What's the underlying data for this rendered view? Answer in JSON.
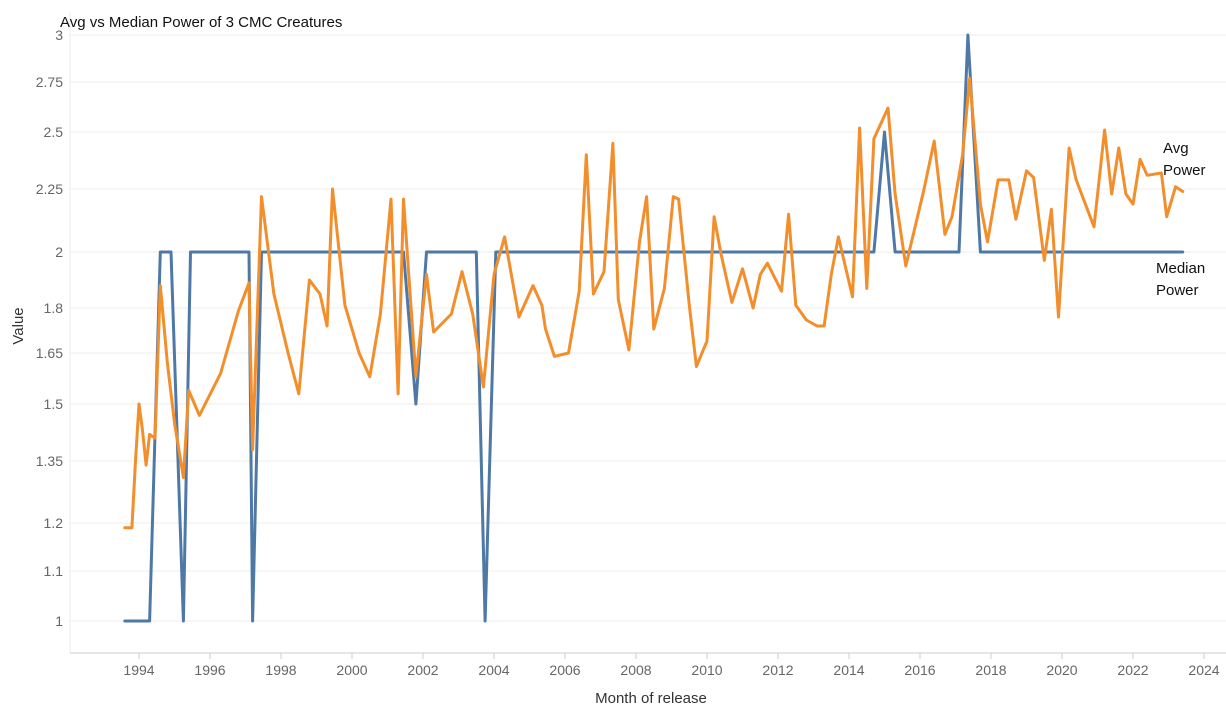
{
  "chart_data": {
    "type": "line",
    "title": "Avg vs Median Power of 3 CMC Creatures",
    "xlabel": "Month of release",
    "ylabel": "Value",
    "xlim": [
      1992.3,
      2024.7
    ],
    "ylim": [
      0.93,
      3.07
    ],
    "y_scale": "nonlinear (as displayed)",
    "grid": true,
    "legend": "inline labels at right end of each line",
    "x_ticks": [
      "1994",
      "1996",
      "1998",
      "2000",
      "2002",
      "2004",
      "2006",
      "2008",
      "2010",
      "2012",
      "2014",
      "2016",
      "2018",
      "2020",
      "2022",
      "2024"
    ],
    "y_ticks": [
      "1",
      "1.1",
      "1.2",
      "1.35",
      "1.5",
      "1.65",
      "1.8",
      "2",
      "2.25",
      "2.5",
      "2.75",
      "3"
    ],
    "series": [
      {
        "name": "Avg Power",
        "label_lines": [
          "Avg",
          "Power"
        ],
        "color": "#f28e2b",
        "points": [
          [
            1993.6,
            1.19
          ],
          [
            1993.8,
            1.19
          ],
          [
            1993.9,
            1.35
          ],
          [
            1994.0,
            1.5
          ],
          [
            1994.1,
            1.43
          ],
          [
            1994.2,
            1.34
          ],
          [
            1994.3,
            1.42
          ],
          [
            1994.45,
            1.41
          ],
          [
            1994.6,
            1.88
          ],
          [
            1994.8,
            1.62
          ],
          [
            1995.0,
            1.45
          ],
          [
            1995.25,
            1.31
          ],
          [
            1995.4,
            1.54
          ],
          [
            1995.7,
            1.47
          ],
          [
            1996.3,
            1.59
          ],
          [
            1996.8,
            1.79
          ],
          [
            1997.1,
            1.89
          ],
          [
            1997.2,
            1.38
          ],
          [
            1997.45,
            2.22
          ],
          [
            1997.8,
            1.85
          ],
          [
            1998.2,
            1.65
          ],
          [
            1998.5,
            1.53
          ],
          [
            1998.8,
            1.9
          ],
          [
            1999.1,
            1.85
          ],
          [
            1999.3,
            1.74
          ],
          [
            1999.45,
            2.25
          ],
          [
            1999.8,
            1.81
          ],
          [
            2000.2,
            1.65
          ],
          [
            2000.5,
            1.58
          ],
          [
            2000.8,
            1.78
          ],
          [
            2001.1,
            2.21
          ],
          [
            2001.3,
            1.53
          ],
          [
            2001.45,
            2.21
          ],
          [
            2001.8,
            1.58
          ],
          [
            2002.1,
            1.92
          ],
          [
            2002.3,
            1.72
          ],
          [
            2002.8,
            1.78
          ],
          [
            2003.1,
            1.93
          ],
          [
            2003.4,
            1.78
          ],
          [
            2003.7,
            1.55
          ],
          [
            2004.0,
            1.92
          ],
          [
            2004.3,
            2.06
          ],
          [
            2004.7,
            1.77
          ],
          [
            2005.1,
            1.88
          ],
          [
            2005.35,
            1.81
          ],
          [
            2005.45,
            1.73
          ],
          [
            2005.7,
            1.64
          ],
          [
            2006.1,
            1.65
          ],
          [
            2006.4,
            1.86
          ],
          [
            2006.6,
            2.4
          ],
          [
            2006.8,
            1.85
          ],
          [
            2007.1,
            1.93
          ],
          [
            2007.35,
            2.45
          ],
          [
            2007.5,
            1.83
          ],
          [
            2007.8,
            1.66
          ],
          [
            2008.1,
            2.04
          ],
          [
            2008.3,
            2.22
          ],
          [
            2008.5,
            1.73
          ],
          [
            2008.8,
            1.87
          ],
          [
            2009.05,
            2.22
          ],
          [
            2009.2,
            2.21
          ],
          [
            2009.5,
            1.81
          ],
          [
            2009.7,
            1.61
          ],
          [
            2010.0,
            1.69
          ],
          [
            2010.2,
            2.14
          ],
          [
            2010.4,
            1.99
          ],
          [
            2010.7,
            1.82
          ],
          [
            2011.0,
            1.94
          ],
          [
            2011.3,
            1.8
          ],
          [
            2011.5,
            1.92
          ],
          [
            2011.7,
            1.96
          ],
          [
            2012.1,
            1.86
          ],
          [
            2012.3,
            2.15
          ],
          [
            2012.5,
            1.81
          ],
          [
            2012.8,
            1.76
          ],
          [
            2013.1,
            1.74
          ],
          [
            2013.3,
            1.74
          ],
          [
            2013.5,
            1.92
          ],
          [
            2013.7,
            2.06
          ],
          [
            2014.1,
            1.84
          ],
          [
            2014.3,
            2.52
          ],
          [
            2014.5,
            1.87
          ],
          [
            2014.7,
            2.47
          ],
          [
            2015.1,
            2.62
          ],
          [
            2015.3,
            2.23
          ],
          [
            2015.6,
            1.95
          ],
          [
            2016.1,
            2.24
          ],
          [
            2016.4,
            2.46
          ],
          [
            2016.7,
            2.07
          ],
          [
            2016.9,
            2.14
          ],
          [
            2017.2,
            2.4
          ],
          [
            2017.4,
            2.77
          ],
          [
            2017.7,
            2.19
          ],
          [
            2017.9,
            2.04
          ],
          [
            2018.2,
            2.29
          ],
          [
            2018.5,
            2.29
          ],
          [
            2018.7,
            2.13
          ],
          [
            2019.0,
            2.33
          ],
          [
            2019.2,
            2.3
          ],
          [
            2019.5,
            1.97
          ],
          [
            2019.7,
            2.17
          ],
          [
            2019.9,
            1.77
          ],
          [
            2020.2,
            2.43
          ],
          [
            2020.4,
            2.29
          ],
          [
            2020.9,
            2.1
          ],
          [
            2021.2,
            2.51
          ],
          [
            2021.4,
            2.23
          ],
          [
            2021.6,
            2.43
          ],
          [
            2021.8,
            2.23
          ],
          [
            2022.0,
            2.19
          ],
          [
            2022.2,
            2.38
          ],
          [
            2022.4,
            2.31
          ],
          [
            2022.8,
            2.32
          ],
          [
            2022.95,
            2.14
          ],
          [
            2023.2,
            2.26
          ],
          [
            2023.4,
            2.24
          ]
        ]
      },
      {
        "name": "Median Power",
        "label_lines": [
          "Median",
          "Power"
        ],
        "color": "#4e79a7",
        "points": [
          [
            1993.6,
            1.0
          ],
          [
            1994.3,
            1.0
          ],
          [
            1994.6,
            2.0
          ],
          [
            1994.9,
            2.0
          ],
          [
            1995.25,
            1.0
          ],
          [
            1995.45,
            2.0
          ],
          [
            1997.1,
            2.0
          ],
          [
            1997.2,
            1.0
          ],
          [
            1997.45,
            2.0
          ],
          [
            2001.45,
            2.0
          ],
          [
            2001.8,
            1.5
          ],
          [
            2002.1,
            2.0
          ],
          [
            2003.5,
            2.0
          ],
          [
            2003.75,
            1.0
          ],
          [
            2004.05,
            2.0
          ],
          [
            2014.7,
            2.0
          ],
          [
            2015.0,
            2.5
          ],
          [
            2015.3,
            2.0
          ],
          [
            2017.1,
            2.0
          ],
          [
            2017.35,
            3.0
          ],
          [
            2017.7,
            2.0
          ],
          [
            2023.4,
            2.0
          ]
        ]
      }
    ]
  }
}
